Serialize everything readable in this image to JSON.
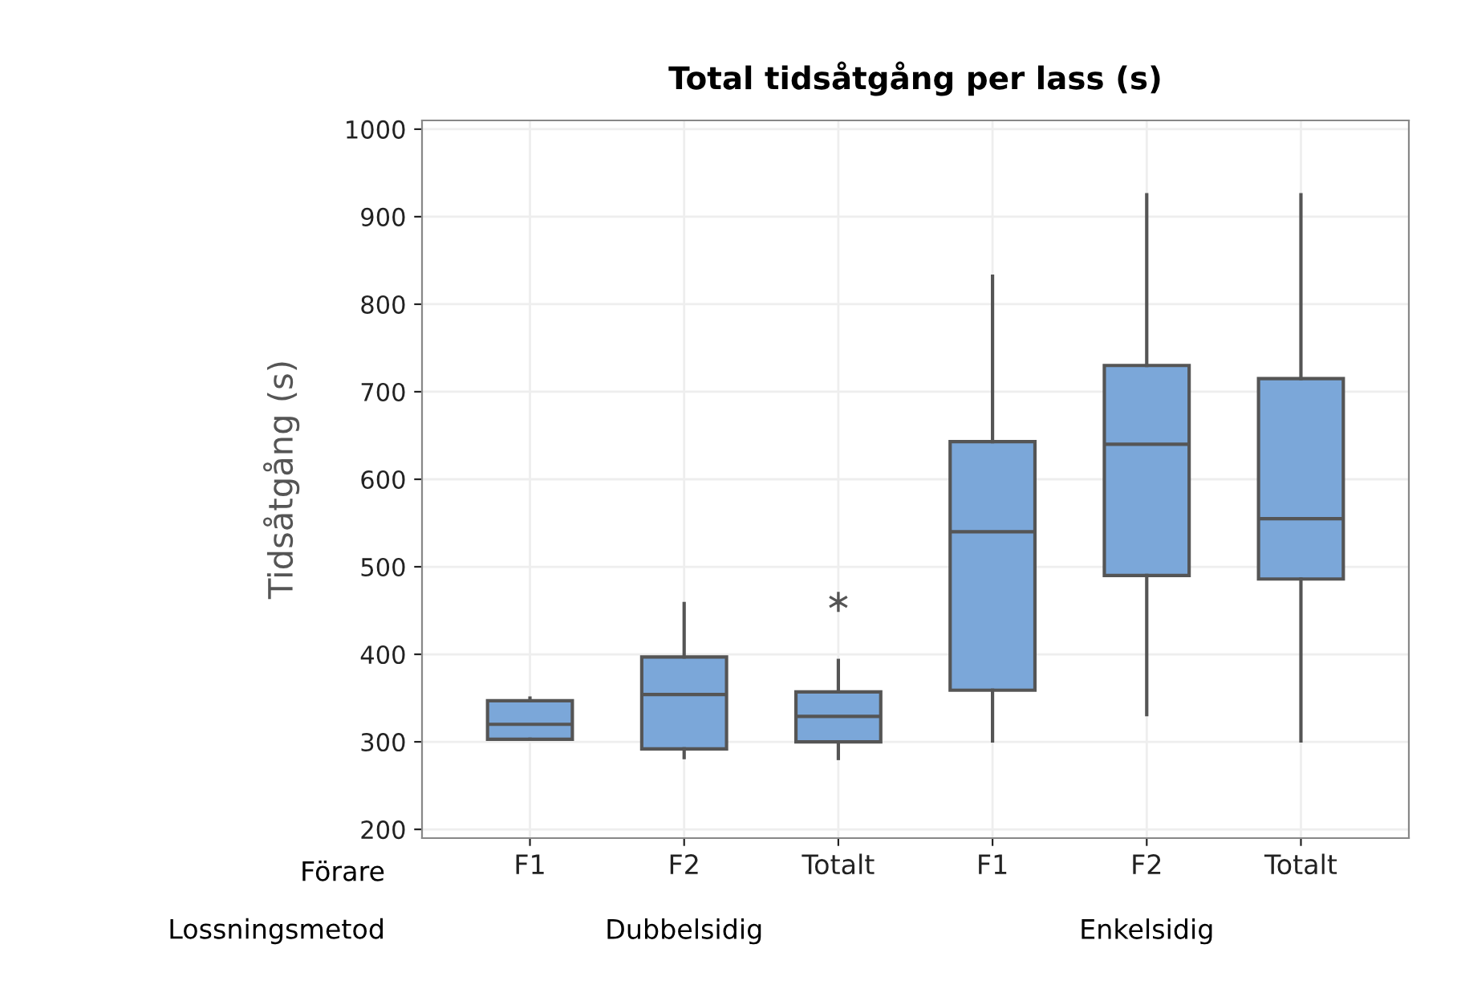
{
  "chart_data": {
    "type": "box",
    "title": "Total tidsåtgång per lass (s)",
    "ylabel": "Tidsåtgång (s)",
    "categories": [
      "F1",
      "F2",
      "Totalt",
      "F1",
      "F2",
      "Totalt"
    ],
    "boxes": [
      {
        "low": 303,
        "q1": 303,
        "median": 320,
        "q3": 347,
        "high": 350
      },
      {
        "low": 282,
        "q1": 292,
        "median": 354,
        "q3": 397,
        "high": 458
      },
      {
        "low": 281,
        "q1": 300,
        "median": 329,
        "q3": 357,
        "high": 393,
        "outliers": [
          460
        ]
      },
      {
        "low": 301,
        "q1": 359,
        "median": 540,
        "q3": 643,
        "high": 832
      },
      {
        "low": 331,
        "q1": 490,
        "median": 640,
        "q3": 730,
        "high": 925
      },
      {
        "low": 301,
        "q1": 486,
        "median": 555,
        "q3": 715,
        "high": 925
      }
    ],
    "color": "#7ba7d9",
    "ylim": [
      190,
      1010
    ],
    "yticks": [
      200,
      300,
      400,
      500,
      600,
      700,
      800,
      900,
      1000
    ],
    "grid": true,
    "annotations": [
      "Förare",
      "Lossningsmetod",
      "Dubbelsidig",
      "Enkelsidig"
    ]
  }
}
